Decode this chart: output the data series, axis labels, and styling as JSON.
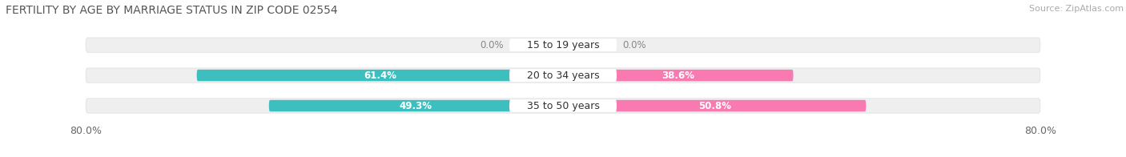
{
  "title": "FERTILITY BY AGE BY MARRIAGE STATUS IN ZIP CODE 02554",
  "source": "Source: ZipAtlas.com",
  "rows": [
    {
      "label": "15 to 19 years",
      "married": 0.0,
      "unmarried": 0.0
    },
    {
      "label": "20 to 34 years",
      "married": 61.4,
      "unmarried": 38.6
    },
    {
      "label": "35 to 50 years",
      "married": 49.3,
      "unmarried": 50.8
    }
  ],
  "x_left_label": "80.0%",
  "x_right_label": "80.0%",
  "x_max": 80.0,
  "married_color": "#3dbfbf",
  "unmarried_color": "#f87ab0",
  "married_light": "#a8e0e0",
  "unmarried_light": "#f9b8d0",
  "bar_bg_color": "#efefef",
  "title_fontsize": 10,
  "label_fontsize": 8.5,
  "tick_fontsize": 9,
  "source_fontsize": 8,
  "legend_fontsize": 9,
  "row_label_fontsize": 9
}
